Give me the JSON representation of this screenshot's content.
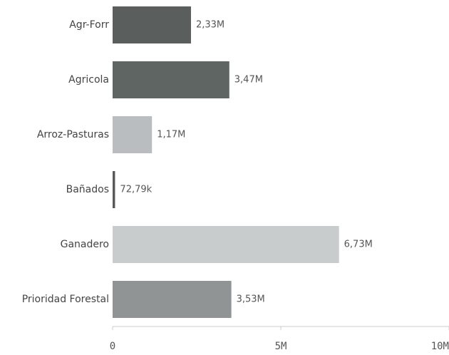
{
  "chart_data": {
    "type": "barh",
    "categories": [
      "Agr-Forr",
      "Agricola",
      "Arroz-Pasturas",
      "Bañados",
      "Ganadero",
      "Prioridad Forestal"
    ],
    "values": [
      2330000,
      3470000,
      1170000,
      72790,
      6730000,
      3530000
    ],
    "value_labels": [
      "2,33M",
      "3,47M",
      "1,17M",
      "72,79k",
      "6,73M",
      "3,53M"
    ],
    "colors": [
      "#5a5f5e",
      "#5f6563",
      "#b9bdbf",
      "#555a59",
      "#c9cccd",
      "#909495"
    ],
    "xlim": [
      0,
      10000000
    ],
    "xticks": [
      0,
      {
        "value": 5000000,
        "label": "5M"
      },
      {
        "value": 10000000,
        "label": "10M"
      }
    ]
  }
}
